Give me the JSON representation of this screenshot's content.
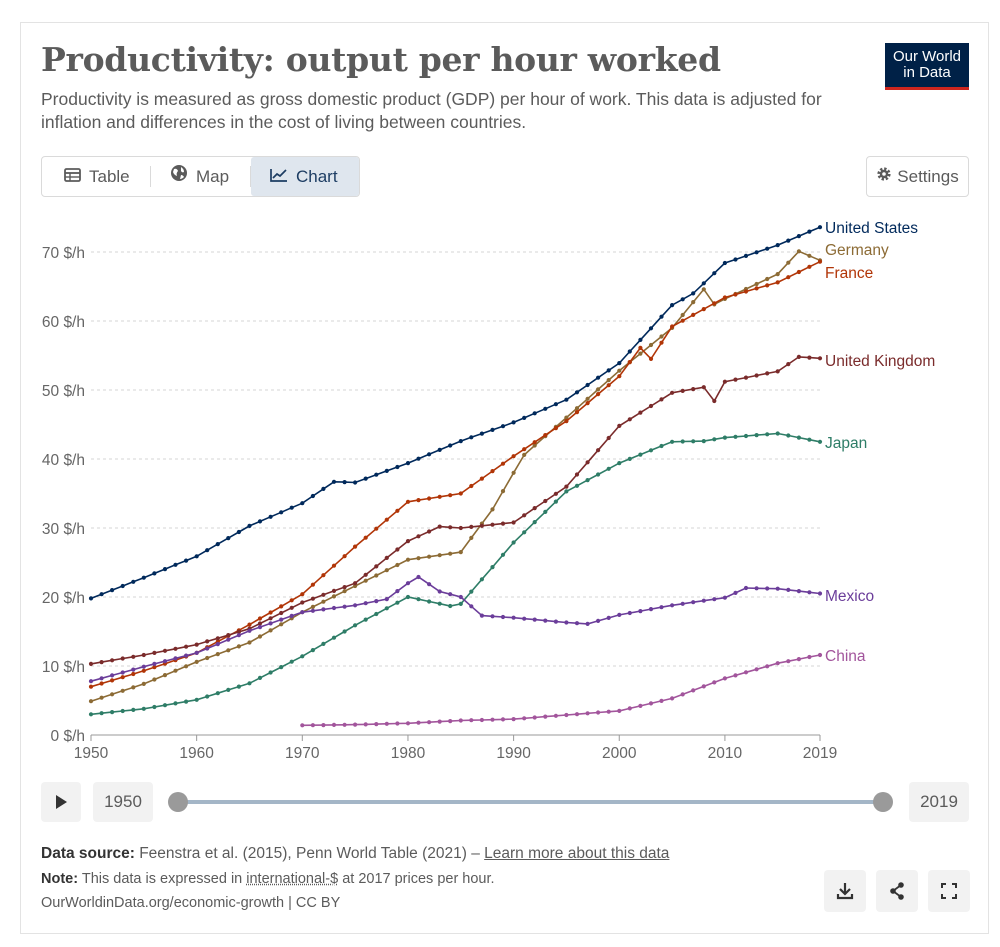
{
  "header": {
    "title": "Productivity: output per hour worked",
    "subtitle": "Productivity is measured as gross domestic product (GDP) per hour of work. This data is adjusted for inflation and differences in the cost of living between countries.",
    "logo_line1": "Our World",
    "logo_line2": "in Data"
  },
  "tabs": [
    {
      "label": "Table",
      "icon": "table-icon"
    },
    {
      "label": "Map",
      "icon": "globe-icon"
    },
    {
      "label": "Chart",
      "icon": "line-chart-icon",
      "active": true
    }
  ],
  "settings_label": "Settings",
  "timeline": {
    "start": "1950",
    "end": "2019"
  },
  "footer": {
    "source_label": "Data source:",
    "source_text": "Feenstra et al. (2015), Penn World Table (2021) – ",
    "source_link": "Learn more about this data",
    "note_label": "Note:",
    "note_pre": "This data is expressed in ",
    "note_link": "international-$",
    "note_post": " at 2017 prices per hour.",
    "credit": "OurWorldinData.org/economic-growth | CC BY"
  },
  "chart_data": {
    "type": "line",
    "title": "Productivity: output per hour worked",
    "xlabel": "",
    "ylabel": "",
    "unit": "$/h",
    "xlim": [
      1950,
      2019
    ],
    "ylim": [
      0,
      70
    ],
    "yticks": [
      0,
      10,
      20,
      30,
      40,
      50,
      60,
      70
    ],
    "ytick_labels": [
      "0 $/h",
      "10 $/h",
      "20 $/h",
      "30 $/h",
      "40 $/h",
      "50 $/h",
      "60 $/h",
      "70 $/h"
    ],
    "xticks": [
      1950,
      1960,
      1970,
      1980,
      1990,
      2000,
      2010,
      2019
    ],
    "xtick_labels": [
      "1950",
      "1960",
      "1970",
      "1980",
      "1990",
      "2000",
      "2010",
      "2019"
    ],
    "grid": true,
    "series": [
      {
        "name": "United States",
        "color": "#00295b",
        "points": [
          [
            1950,
            19.8
          ],
          [
            1955,
            22.8
          ],
          [
            1960,
            25.9
          ],
          [
            1965,
            30.3
          ],
          [
            1970,
            33.6
          ],
          [
            1973,
            36.7
          ],
          [
            1975,
            36.6
          ],
          [
            1980,
            39.4
          ],
          [
            1985,
            42.6
          ],
          [
            1990,
            45.3
          ],
          [
            1995,
            48.6
          ],
          [
            2000,
            53.9
          ],
          [
            2005,
            62.3
          ],
          [
            2007,
            64.0
          ],
          [
            2010,
            68.4
          ],
          [
            2015,
            71.0
          ],
          [
            2019,
            73.6
          ]
        ]
      },
      {
        "name": "Germany",
        "color": "#8c6b35",
        "points": [
          [
            1950,
            4.9
          ],
          [
            1955,
            7.4
          ],
          [
            1960,
            10.6
          ],
          [
            1965,
            13.4
          ],
          [
            1970,
            17.8
          ],
          [
            1975,
            21.6
          ],
          [
            1980,
            25.4
          ],
          [
            1985,
            26.5
          ],
          [
            1988,
            32.7
          ],
          [
            1990,
            38.0
          ],
          [
            1991,
            40.6
          ],
          [
            1995,
            46.0
          ],
          [
            2000,
            52.8
          ],
          [
            2005,
            59.0
          ],
          [
            2008,
            64.6
          ],
          [
            2009,
            62.4
          ],
          [
            2010,
            63.2
          ],
          [
            2015,
            66.8
          ],
          [
            2017,
            70.1
          ],
          [
            2019,
            68.8
          ]
        ]
      },
      {
        "name": "France",
        "color": "#b13507",
        "points": [
          [
            1950,
            7.0
          ],
          [
            1955,
            9.3
          ],
          [
            1960,
            11.9
          ],
          [
            1965,
            16.0
          ],
          [
            1970,
            20.4
          ],
          [
            1975,
            27.3
          ],
          [
            1980,
            33.8
          ],
          [
            1985,
            35.0
          ],
          [
            1990,
            40.4
          ],
          [
            1995,
            45.5
          ],
          [
            2000,
            52.0
          ],
          [
            2002,
            56.1
          ],
          [
            2003,
            54.5
          ],
          [
            2005,
            59.2
          ],
          [
            2010,
            63.4
          ],
          [
            2015,
            65.6
          ],
          [
            2019,
            68.6
          ]
        ]
      },
      {
        "name": "United Kingdom",
        "color": "#7a2b2b",
        "points": [
          [
            1950,
            10.3
          ],
          [
            1955,
            11.6
          ],
          [
            1960,
            13.1
          ],
          [
            1965,
            15.4
          ],
          [
            1970,
            19.2
          ],
          [
            1975,
            22.0
          ],
          [
            1980,
            28.1
          ],
          [
            1983,
            30.2
          ],
          [
            1985,
            30.0
          ],
          [
            1990,
            30.8
          ],
          [
            1995,
            36.0
          ],
          [
            2000,
            44.8
          ],
          [
            2005,
            49.6
          ],
          [
            2008,
            50.4
          ],
          [
            2009,
            48.4
          ],
          [
            2010,
            51.2
          ],
          [
            2015,
            52.7
          ],
          [
            2017,
            54.8
          ],
          [
            2019,
            54.6
          ]
        ]
      },
      {
        "name": "Japan",
        "color": "#2e7d67",
        "points": [
          [
            1950,
            3.0
          ],
          [
            1955,
            3.8
          ],
          [
            1960,
            5.1
          ],
          [
            1965,
            7.5
          ],
          [
            1970,
            11.4
          ],
          [
            1975,
            15.9
          ],
          [
            1980,
            20.0
          ],
          [
            1984,
            18.7
          ],
          [
            1985,
            19.0
          ],
          [
            1990,
            27.9
          ],
          [
            1995,
            35.3
          ],
          [
            2000,
            39.4
          ],
          [
            2005,
            42.5
          ],
          [
            2008,
            42.6
          ],
          [
            2010,
            43.1
          ],
          [
            2015,
            43.7
          ],
          [
            2019,
            42.5
          ]
        ]
      },
      {
        "name": "Mexico",
        "color": "#6b3d9a",
        "points": [
          [
            1950,
            7.8
          ],
          [
            1955,
            9.9
          ],
          [
            1960,
            11.9
          ],
          [
            1965,
            15.1
          ],
          [
            1970,
            17.8
          ],
          [
            1975,
            18.8
          ],
          [
            1978,
            19.7
          ],
          [
            1980,
            22.0
          ],
          [
            1981,
            22.9
          ],
          [
            1983,
            20.8
          ],
          [
            1985,
            20.0
          ],
          [
            1987,
            17.3
          ],
          [
            1990,
            17.0
          ],
          [
            1995,
            16.3
          ],
          [
            1997,
            16.1
          ],
          [
            2000,
            17.4
          ],
          [
            2005,
            18.8
          ],
          [
            2010,
            19.9
          ],
          [
            2012,
            21.3
          ],
          [
            2015,
            21.2
          ],
          [
            2019,
            20.5
          ]
        ]
      },
      {
        "name": "China",
        "color": "#a2559c",
        "points": [
          [
            1970,
            1.4
          ],
          [
            1975,
            1.5
          ],
          [
            1980,
            1.7
          ],
          [
            1985,
            2.1
          ],
          [
            1990,
            2.3
          ],
          [
            1995,
            2.9
          ],
          [
            2000,
            3.5
          ],
          [
            2005,
            5.3
          ],
          [
            2010,
            8.2
          ],
          [
            2015,
            10.4
          ],
          [
            2019,
            11.6
          ]
        ]
      }
    ]
  }
}
